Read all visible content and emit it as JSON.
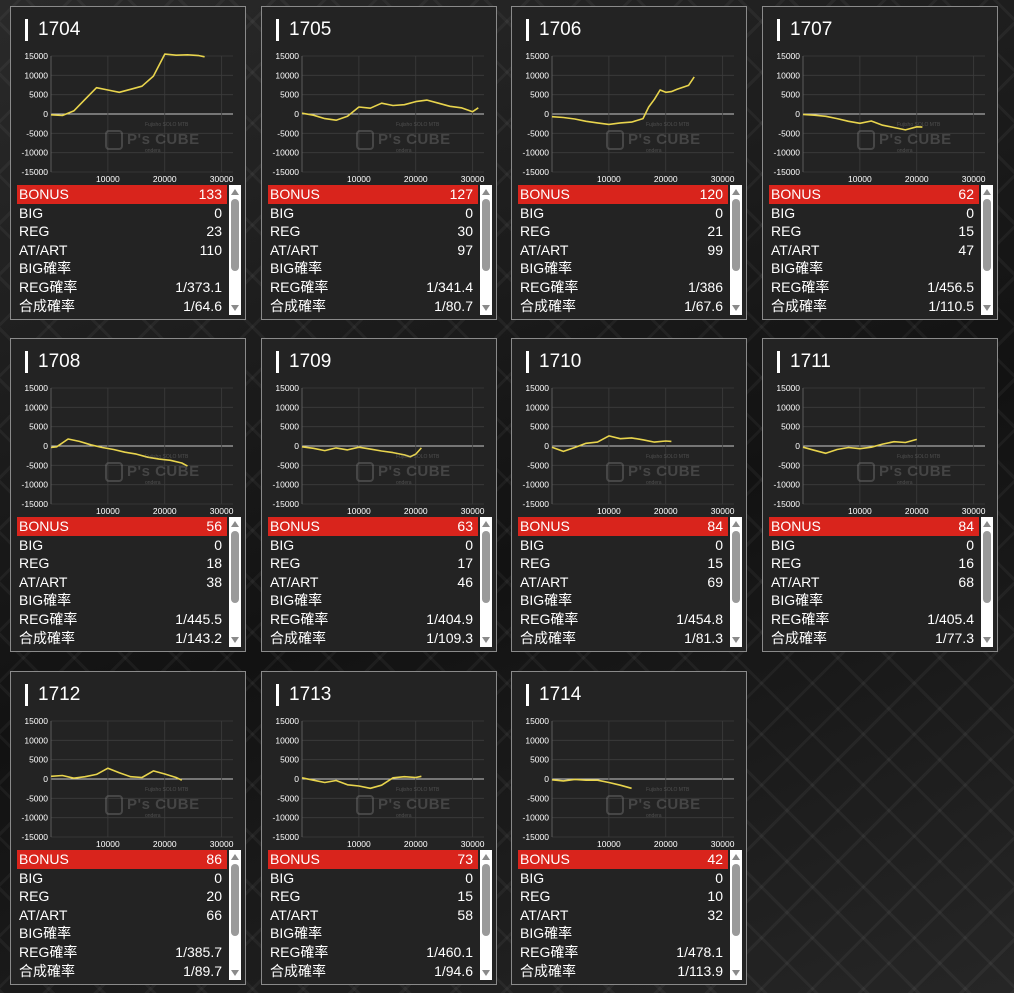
{
  "labels": {
    "bonus": "BONUS",
    "big": "BIG",
    "reg": "REG",
    "atart": "AT/ART",
    "big_rate": "BIG確率",
    "reg_rate": "REG確率",
    "total_rate": "合成確率"
  },
  "watermark": {
    "text": "P's CUBE",
    "line1": "Fujisho SOLO MTB",
    "line2": "ondera"
  },
  "colors": {
    "bonus_bar": "#d9241c",
    "chart_line": "#e8d44d",
    "card_bg": "#232323"
  },
  "chart_axes": {
    "y_ticks": [
      "15000",
      "10000",
      "5000",
      "0",
      "-5000",
      "-10000",
      "-15000"
    ],
    "x_ticks": [
      "10000",
      "20000",
      "30000"
    ]
  },
  "machines": [
    {
      "id": "1704",
      "bonus": "133",
      "big": "0",
      "reg": "23",
      "atart": "110",
      "big_rate": "",
      "reg_rate": "1/373.1",
      "total_rate": "1/64.6"
    },
    {
      "id": "1705",
      "bonus": "127",
      "big": "0",
      "reg": "30",
      "atart": "97",
      "big_rate": "",
      "reg_rate": "1/341.4",
      "total_rate": "1/80.7"
    },
    {
      "id": "1706",
      "bonus": "120",
      "big": "0",
      "reg": "21",
      "atart": "99",
      "big_rate": "",
      "reg_rate": "1/386",
      "total_rate": "1/67.6"
    },
    {
      "id": "1707",
      "bonus": "62",
      "big": "0",
      "reg": "15",
      "atart": "47",
      "big_rate": "",
      "reg_rate": "1/456.5",
      "total_rate": "1/110.5"
    },
    {
      "id": "1708",
      "bonus": "56",
      "big": "0",
      "reg": "18",
      "atart": "38",
      "big_rate": "",
      "reg_rate": "1/445.5",
      "total_rate": "1/143.2"
    },
    {
      "id": "1709",
      "bonus": "63",
      "big": "0",
      "reg": "17",
      "atart": "46",
      "big_rate": "",
      "reg_rate": "1/404.9",
      "total_rate": "1/109.3"
    },
    {
      "id": "1710",
      "bonus": "84",
      "big": "0",
      "reg": "15",
      "atart": "69",
      "big_rate": "",
      "reg_rate": "1/454.8",
      "total_rate": "1/81.3"
    },
    {
      "id": "1711",
      "bonus": "84",
      "big": "0",
      "reg": "16",
      "atart": "68",
      "big_rate": "",
      "reg_rate": "1/405.4",
      "total_rate": "1/77.3"
    },
    {
      "id": "1712",
      "bonus": "86",
      "big": "0",
      "reg": "20",
      "atart": "66",
      "big_rate": "",
      "reg_rate": "1/385.7",
      "total_rate": "1/89.7"
    },
    {
      "id": "1713",
      "bonus": "73",
      "big": "0",
      "reg": "15",
      "atart": "58",
      "big_rate": "",
      "reg_rate": "1/460.1",
      "total_rate": "1/94.6"
    },
    {
      "id": "1714",
      "bonus": "42",
      "big": "0",
      "reg": "10",
      "atart": "32",
      "big_rate": "",
      "reg_rate": "1/478.1",
      "total_rate": "1/113.9"
    }
  ],
  "chart_data": [
    {
      "type": "line",
      "xlim": [
        0,
        32000
      ],
      "ylim": [
        -15000,
        15000
      ],
      "grid": true,
      "x": [
        0,
        2000,
        4000,
        6000,
        8000,
        10000,
        12000,
        14000,
        16000,
        18000,
        20000,
        22000,
        24000,
        26000,
        27000
      ],
      "y": [
        -200,
        -400,
        800,
        3800,
        6800,
        6200,
        5600,
        6400,
        7200,
        9800,
        15500,
        15200,
        15300,
        15100,
        14800
      ]
    },
    {
      "type": "line",
      "xlim": [
        0,
        32000
      ],
      "ylim": [
        -15000,
        15000
      ],
      "grid": true,
      "x": [
        0,
        2000,
        4000,
        6000,
        8000,
        10000,
        12000,
        14000,
        16000,
        18000,
        20000,
        22000,
        24000,
        26000,
        28000,
        30000,
        31000
      ],
      "y": [
        200,
        -300,
        -1200,
        -1600,
        -600,
        1800,
        1500,
        2800,
        2200,
        2400,
        3200,
        3600,
        2800,
        2000,
        1600,
        600,
        1600
      ]
    },
    {
      "type": "line",
      "xlim": [
        0,
        32000
      ],
      "ylim": [
        -15000,
        15000
      ],
      "grid": true,
      "x": [
        0,
        2000,
        4000,
        6000,
        8000,
        10000,
        12000,
        14000,
        16000,
        17000,
        18000,
        19000,
        20000,
        21000,
        22000,
        24000,
        25000
      ],
      "y": [
        -700,
        -900,
        -1300,
        -1900,
        -2300,
        -2700,
        -2300,
        -2100,
        -1200,
        1800,
        3800,
        6200,
        5600,
        5800,
        6400,
        7400,
        9600
      ]
    },
    {
      "type": "line",
      "xlim": [
        0,
        32000
      ],
      "ylim": [
        -15000,
        15000
      ],
      "grid": true,
      "x": [
        0,
        2000,
        4000,
        6000,
        8000,
        10000,
        12000,
        14000,
        16000,
        18000,
        20000,
        21000
      ],
      "y": [
        -100,
        -300,
        -600,
        -1200,
        -1900,
        -2400,
        -1800,
        -2900,
        -3500,
        -4100,
        -3300,
        -3400
      ]
    },
    {
      "type": "line",
      "xlim": [
        0,
        32000
      ],
      "ylim": [
        -15000,
        15000
      ],
      "grid": true,
      "x": [
        0,
        1000,
        3000,
        5000,
        7000,
        9000,
        11000,
        13000,
        15000,
        17000,
        19000,
        21000,
        23000,
        24000
      ],
      "y": [
        -400,
        -200,
        1800,
        1200,
        300,
        -400,
        -900,
        -1600,
        -2100,
        -2900,
        -3400,
        -3700,
        -4400,
        -5200
      ]
    },
    {
      "type": "line",
      "xlim": [
        0,
        32000
      ],
      "ylim": [
        -15000,
        15000
      ],
      "grid": true,
      "x": [
        0,
        2000,
        4000,
        6000,
        8000,
        10000,
        12000,
        14000,
        16000,
        18000,
        19000,
        20000,
        21000
      ],
      "y": [
        -200,
        -600,
        -1200,
        -500,
        -1000,
        -300,
        -800,
        -1300,
        -1700,
        -2300,
        -2800,
        -2100,
        -500
      ]
    },
    {
      "type": "line",
      "xlim": [
        0,
        32000
      ],
      "ylim": [
        -15000,
        15000
      ],
      "grid": true,
      "x": [
        0,
        2000,
        4000,
        6000,
        8000,
        10000,
        12000,
        14000,
        16000,
        18000,
        20000,
        21000
      ],
      "y": [
        -300,
        -1400,
        -400,
        700,
        1000,
        2600,
        1900,
        2100,
        1600,
        1000,
        1300,
        1200
      ]
    },
    {
      "type": "line",
      "xlim": [
        0,
        32000
      ],
      "ylim": [
        -15000,
        15000
      ],
      "grid": true,
      "x": [
        0,
        2000,
        4000,
        6000,
        8000,
        10000,
        12000,
        14000,
        16000,
        18000,
        20000
      ],
      "y": [
        -300,
        -1100,
        -1900,
        -900,
        -400,
        -700,
        -300,
        500,
        1100,
        900,
        1700
      ]
    },
    {
      "type": "line",
      "xlim": [
        0,
        32000
      ],
      "ylim": [
        -15000,
        15000
      ],
      "grid": true,
      "x": [
        0,
        2000,
        4000,
        6000,
        8000,
        10000,
        12000,
        14000,
        16000,
        18000,
        20000,
        22000,
        23000
      ],
      "y": [
        700,
        900,
        200,
        600,
        1200,
        2800,
        1600,
        600,
        400,
        2100,
        1300,
        400,
        -300
      ]
    },
    {
      "type": "line",
      "xlim": [
        0,
        32000
      ],
      "ylim": [
        -15000,
        15000
      ],
      "grid": true,
      "x": [
        0,
        2000,
        4000,
        6000,
        8000,
        10000,
        12000,
        14000,
        16000,
        18000,
        20000,
        21000
      ],
      "y": [
        300,
        -300,
        -900,
        -400,
        -1500,
        -1800,
        -2400,
        -1600,
        300,
        600,
        400,
        700
      ]
    },
    {
      "type": "line",
      "xlim": [
        0,
        32000
      ],
      "ylim": [
        -15000,
        15000
      ],
      "grid": true,
      "x": [
        0,
        2000,
        4000,
        6000,
        8000,
        10000,
        12000,
        14000
      ],
      "y": [
        -200,
        -500,
        -100,
        -300,
        -300,
        -900,
        -1600,
        -2400
      ]
    }
  ]
}
